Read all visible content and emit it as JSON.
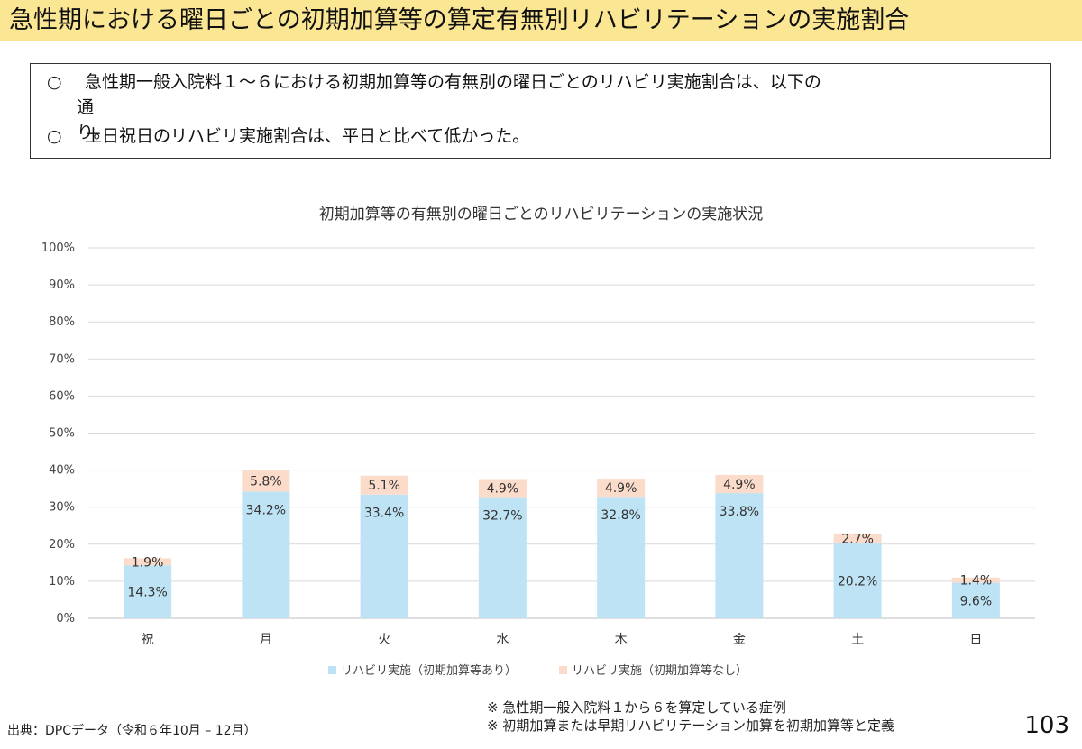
{
  "page": {
    "title": "急性期における曜日ごとの初期加算等の算定有無別リハビリテーションの実施割合",
    "bullets": [
      {
        "mark": "○",
        "text": "急性期一般入院料１～６における初期加算等の有無別の曜日ごとのリハビリ実施割合は、以下の",
        "continuation": "通り。"
      },
      {
        "mark": "○",
        "text": "土日祝日のリハビリ実施割合は、平日と比べて低かった。"
      }
    ],
    "source": "出典：DPCデータ（令和６年10月 – 12月）",
    "notes": [
      "※ 急性期一般入院料１から６を算定している症例",
      "※ 初期加算または早期リハビリテーション加算を初期加算等と定義"
    ],
    "page_number": "103"
  },
  "chart_data": {
    "type": "bar",
    "stacked": true,
    "title": "初期加算等の有無別の曜日ごとのリハビリテーションの実施状況",
    "categories": [
      "祝",
      "月",
      "火",
      "水",
      "木",
      "金",
      "土",
      "日"
    ],
    "series": [
      {
        "name": "リハビリ実施（初期加算等あり）",
        "values": [
          14.3,
          34.2,
          33.4,
          32.7,
          32.8,
          33.8,
          20.2,
          9.6
        ],
        "labels": [
          "14.3%",
          "34.2%",
          "33.4%",
          "32.7%",
          "32.8%",
          "33.8%",
          "20.2%",
          "9.6%"
        ],
        "color": "#bde3f4"
      },
      {
        "name": "リハビリ実施（初期加算等なし）",
        "values": [
          1.9,
          5.8,
          5.1,
          4.9,
          4.9,
          4.9,
          2.7,
          1.4
        ],
        "labels": [
          "1.9%",
          "5.8%",
          "5.1%",
          "4.9%",
          "4.9%",
          "4.9%",
          "2.7%",
          "1.4%"
        ],
        "color": "#fbdccb"
      }
    ],
    "ylim": [
      0,
      100
    ],
    "yticks": [
      "0%",
      "10%",
      "20%",
      "30%",
      "40%",
      "50%",
      "60%",
      "70%",
      "80%",
      "90%",
      "100%"
    ],
    "grid": true,
    "legend": "bottom"
  }
}
